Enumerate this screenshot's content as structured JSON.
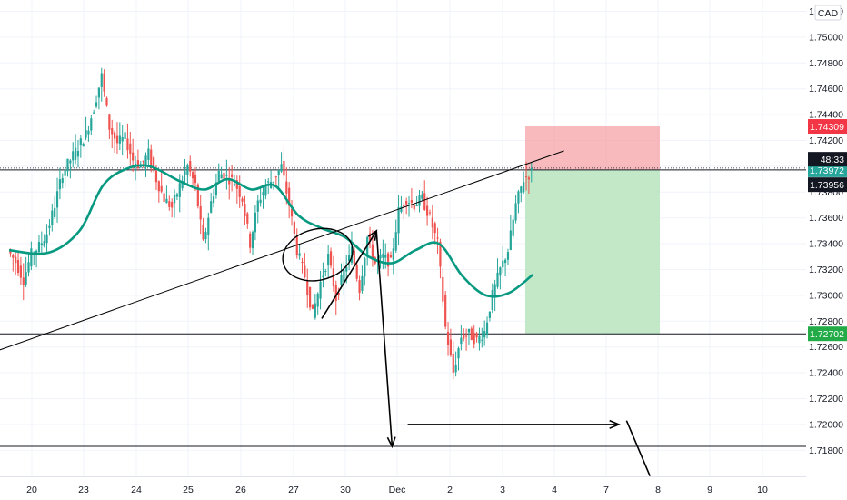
{
  "currency_badge": "CAD",
  "colors": {
    "up": "#26a69a",
    "down": "#ef5350",
    "ma": "#089981",
    "stop_zone": "#f5a3a7",
    "target_zone": "#b7e4bd",
    "stop_tag": "#f23645",
    "target_tag": "#22ab47",
    "price_tag": "#26a69a",
    "clock_tag": "#131722",
    "text": "#131722",
    "grid": "#f0f3fa"
  },
  "chart_data": {
    "type": "candlestick",
    "symbol_currency": "CAD",
    "y_range": [
      1.718,
      1.752
    ],
    "y_ticks": [
      1.752,
      1.75,
      1.748,
      1.746,
      1.744,
      1.742,
      1.74,
      1.738,
      1.736,
      1.734,
      1.732,
      1.73,
      1.728,
      1.726,
      1.724,
      1.722,
      1.72,
      1.718
    ],
    "x_tick_labels": [
      "20",
      "23",
      "24",
      "25",
      "26",
      "27",
      "30",
      "Dec",
      "2",
      "3",
      "4",
      "7",
      "8",
      "9",
      "10"
    ],
    "price_tags": [
      {
        "label": "1.74309",
        "value": 1.74309,
        "role": "stop_loss"
      },
      {
        "label": "1.73972",
        "value": 1.73972,
        "role": "entry"
      },
      {
        "label": "48:33",
        "role": "countdown"
      },
      {
        "label": "1.73956",
        "value": 1.73956,
        "role": "last_price"
      },
      {
        "label": "1.72702",
        "value": 1.72702,
        "role": "take_profit"
      }
    ],
    "horizontal_levels": [
      1.73972,
      1.72702,
      1.7183
    ],
    "trade": {
      "direction": "short",
      "entry": 1.73972,
      "stop": 1.74309,
      "target": 1.72702,
      "start_x": "3",
      "end_x": "8"
    },
    "price_path": [
      [
        0,
        1.7335
      ],
      [
        1,
        1.7326
      ],
      [
        2,
        1.7312
      ],
      [
        3,
        1.7332
      ],
      [
        4,
        1.7338
      ],
      [
        5,
        1.7348
      ],
      [
        6,
        1.737
      ],
      [
        7,
        1.7395
      ],
      [
        8,
        1.7405
      ],
      [
        9,
        1.7415
      ],
      [
        10,
        1.7425
      ],
      [
        11,
        1.7445
      ],
      [
        12,
        1.747
      ],
      [
        13,
        1.743
      ],
      [
        14,
        1.7418
      ],
      [
        15,
        1.7422
      ],
      [
        16,
        1.7405
      ],
      [
        17,
        1.74
      ],
      [
        18,
        1.741
      ],
      [
        19,
        1.739
      ],
      [
        20,
        1.7375
      ],
      [
        21,
        1.7368
      ],
      [
        22,
        1.7385
      ],
      [
        23,
        1.74
      ],
      [
        24,
        1.7385
      ],
      [
        25,
        1.734
      ],
      [
        26,
        1.7372
      ],
      [
        27,
        1.7395
      ],
      [
        28,
        1.7392
      ],
      [
        29,
        1.7388
      ],
      [
        30,
        1.7375
      ],
      [
        31,
        1.734
      ],
      [
        32,
        1.7372
      ],
      [
        33,
        1.7385
      ],
      [
        34,
        1.739
      ],
      [
        35,
        1.74
      ],
      [
        36,
        1.737
      ],
      [
        37,
        1.7335
      ],
      [
        38,
        1.7315
      ],
      [
        39,
        1.7285
      ],
      [
        40,
        1.731
      ],
      [
        41,
        1.733
      ],
      [
        42,
        1.7298
      ],
      [
        43,
        1.7318
      ],
      [
        44,
        1.7335
      ],
      [
        45,
        1.7305
      ],
      [
        46,
        1.7345
      ],
      [
        47,
        1.7325
      ],
      [
        48,
        1.733
      ],
      [
        49,
        1.7325
      ],
      [
        50,
        1.7365
      ],
      [
        51,
        1.7375
      ],
      [
        52,
        1.737
      ],
      [
        53,
        1.7375
      ],
      [
        54,
        1.736
      ],
      [
        55,
        1.734
      ],
      [
        56,
        1.7275
      ],
      [
        57,
        1.724
      ],
      [
        58,
        1.7268
      ],
      [
        59,
        1.727
      ],
      [
        60,
        1.7265
      ],
      [
        61,
        1.7272
      ],
      [
        62,
        1.73
      ],
      [
        63,
        1.732
      ],
      [
        64,
        1.7335
      ],
      [
        65,
        1.737
      ],
      [
        66,
        1.739
      ],
      [
        67,
        1.73956
      ]
    ],
    "moving_average": [
      [
        0,
        1.7335
      ],
      [
        5,
        1.7333
      ],
      [
        9,
        1.735
      ],
      [
        12,
        1.7385
      ],
      [
        15,
        1.7398
      ],
      [
        18,
        1.74
      ],
      [
        22,
        1.7388
      ],
      [
        25,
        1.7382
      ],
      [
        28,
        1.739
      ],
      [
        31,
        1.7382
      ],
      [
        34,
        1.7385
      ],
      [
        37,
        1.7362
      ],
      [
        40,
        1.7352
      ],
      [
        43,
        1.7345
      ],
      [
        46,
        1.733
      ],
      [
        49,
        1.7325
      ],
      [
        52,
        1.7335
      ],
      [
        55,
        1.734
      ],
      [
        58,
        1.7315
      ],
      [
        61,
        1.73
      ],
      [
        64,
        1.7302
      ],
      [
        67,
        1.7316
      ]
    ],
    "annotations": [
      {
        "kind": "trendline",
        "from": [
          -2,
          1.7256
        ],
        "to": [
          71,
          1.7412
        ]
      },
      {
        "kind": "ellipse",
        "around": [
          36,
          1.734
        ]
      },
      {
        "kind": "arrow",
        "from": [
          40,
          1.7282
        ],
        "to": [
          47,
          1.735
        ]
      },
      {
        "kind": "arrow",
        "from": [
          47,
          1.735
        ],
        "to": [
          49,
          1.7183
        ]
      },
      {
        "kind": "arrow",
        "from": [
          51,
          1.72
        ],
        "to": [
          78,
          1.72
        ]
      },
      {
        "kind": "line",
        "from": [
          79,
          1.7203
        ],
        "to": [
          82,
          1.716
        ]
      }
    ]
  }
}
